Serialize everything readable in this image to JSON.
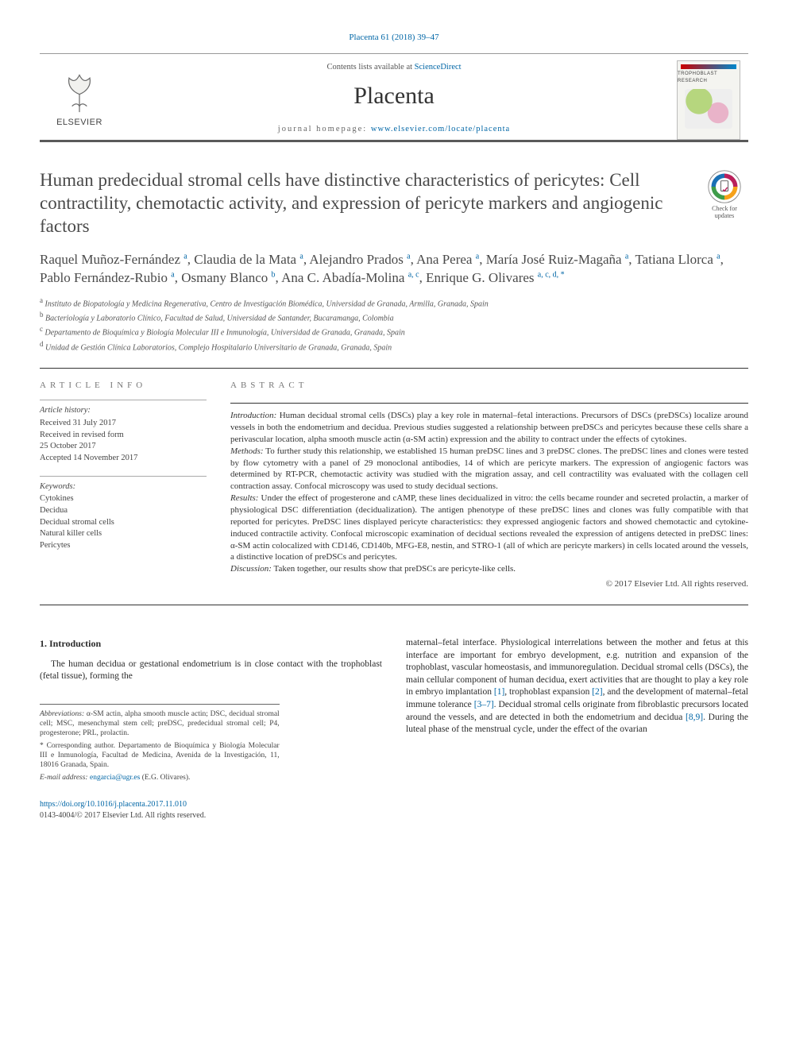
{
  "citation": "Placenta 61 (2018) 39–47",
  "masthead": {
    "contents_prefix": "Contents lists available at ",
    "contents_link": "ScienceDirect",
    "journal": "Placenta",
    "homepage_prefix": "journal homepage: ",
    "homepage_url": "www.elsevier.com/locate/placenta",
    "publisher_word": "ELSEVIER",
    "cover_label": "TROPHOBLAST RESEARCH"
  },
  "check_updates": {
    "line1": "Check for",
    "line2": "updates"
  },
  "title": "Human predecidual stromal cells have distinctive characteristics of pericytes: Cell contractility, chemotactic activity, and expression of pericyte markers and angiogenic factors",
  "authors_html": "Raquel Muñoz-Fernández <sup>a</sup>, Claudia de la Mata <sup>a</sup>, Alejandro Prados <sup>a</sup>, Ana Perea <sup>a</sup>, María José Ruiz-Magaña <sup>a</sup>, Tatiana Llorca <sup>a</sup>, Pablo Fernández-Rubio <sup>a</sup>, Osmany Blanco <sup>b</sup>, Ana C. Abadía-Molina <sup>a, c</sup>, Enrique G. Olivares <sup>a, c, d, *</sup>",
  "affiliations": [
    {
      "sup": "a",
      "text": "Instituto de Biopatología y Medicina Regenerativa, Centro de Investigación Biomédica, Universidad de Granada, Armilla, Granada, Spain"
    },
    {
      "sup": "b",
      "text": "Bacteriología y Laboratorio Clínico, Facultad de Salud, Universidad de Santander, Bucaramanga, Colombia"
    },
    {
      "sup": "c",
      "text": "Departamento de Bioquímica y Biología Molecular III e Inmunología, Universidad de Granada, Granada, Spain"
    },
    {
      "sup": "d",
      "text": "Unidad de Gestión Clínica Laboratorios, Complejo Hospitalario Universitario de Granada, Granada, Spain"
    }
  ],
  "article_info": {
    "head": "ARTICLE INFO",
    "history_head": "Article history:",
    "history": [
      "Received 31 July 2017",
      "Received in revised form",
      "25 October 2017",
      "Accepted 14 November 2017"
    ],
    "keywords_head": "Keywords:",
    "keywords": [
      "Cytokines",
      "Decidua",
      "Decidual stromal cells",
      "Natural killer cells",
      "Pericytes"
    ]
  },
  "abstract": {
    "head": "ABSTRACT",
    "intro_label": "Introduction:",
    "intro": " Human decidual stromal cells (DSCs) play a key role in maternal–fetal interactions. Precursors of DSCs (preDSCs) localize around vessels in both the endometrium and decidua. Previous studies suggested a relationship between preDSCs and pericytes because these cells share a perivascular location, alpha smooth muscle actin (α-SM actin) expression and the ability to contract under the effects of cytokines.",
    "methods_label": "Methods:",
    "methods": " To further study this relationship, we established 15 human preDSC lines and 3 preDSC clones. The preDSC lines and clones were tested by flow cytometry with a panel of 29 monoclonal antibodies, 14 of which are pericyte markers. The expression of angiogenic factors was determined by RT-PCR, chemotactic activity was studied with the migration assay, and cell contractility was evaluated with the collagen cell contraction assay. Confocal microscopy was used to study decidual sections.",
    "results_label": "Results:",
    "results": " Under the effect of progesterone and cAMP, these lines decidualized in vitro: the cells became rounder and secreted prolactin, a marker of physiological DSC differentiation (decidualization). The antigen phenotype of these preDSC lines and clones was fully compatible with that reported for pericytes. PreDSC lines displayed pericyte characteristics: they expressed angiogenic factors and showed chemotactic and cytokine-induced contractile activity. Confocal microscopic examination of decidual sections revealed the expression of antigens detected in preDSC lines: α-SM actin colocalized with CD146, CD140b, MFG-E8, nestin, and STRO-1 (all of which are pericyte markers) in cells located around the vessels, a distinctive location of preDSCs and pericytes.",
    "discussion_label": "Discussion:",
    "discussion": " Taken together, our results show that preDSCs are pericyte-like cells.",
    "copyright": "© 2017 Elsevier Ltd. All rights reserved."
  },
  "body": {
    "h1": "1. Introduction",
    "p1": "The human decidua or gestational endometrium is in close contact with the trophoblast (fetal tissue), forming the",
    "p2_a": "maternal–fetal interface. Physiological interrelations between the mother and fetus at this interface are important for embryo development, e.g. nutrition and expansion of the trophoblast, vascular homeostasis, and immunoregulation. Decidual stromal cells (DSCs), the main cellular component of human decidua, exert activities that are thought to play a key role in embryo implantation ",
    "ref1": "[1]",
    "p2_b": ", trophoblast expansion ",
    "ref2": "[2]",
    "p2_c": ", and the development of maternal–fetal immune tolerance ",
    "ref3": "[3–7]",
    "p2_d": ". Decidual stromal cells originate from fibroblastic precursors located around the vessels, and are detected in both the endometrium and decidua ",
    "ref4": "[8,9]",
    "p2_e": ". During the luteal phase of the menstrual cycle, under the effect of the ovarian"
  },
  "footnotes": {
    "abbrev_label": "Abbreviations:",
    "abbrev": " α-SM actin, alpha smooth muscle actin; DSC, decidual stromal cell; MSC, mesenchymal stem cell; preDSC, predecidual stromal cell; P4, progesterone; PRL, prolactin.",
    "corr_mark": "*",
    "corr": " Corresponding author. Departamento de Bioquímica y Biología Molecular III e Inmunología, Facultad de Medicina, Avenida de la Investigación, 11, 18016 Granada, Spain.",
    "email_label": "E-mail address:",
    "email": "engarcia@ugr.es",
    "email_paren": " (E.G. Olivares)."
  },
  "footer": {
    "doi": "https://doi.org/10.1016/j.placenta.2017.11.010",
    "issn_line": "0143-4004/© 2017 Elsevier Ltd. All rights reserved."
  },
  "colors": {
    "link": "#0066a6",
    "text": "#2b2b2b",
    "rule": "#333333",
    "elsevier_orange": "#ef7d1a"
  }
}
